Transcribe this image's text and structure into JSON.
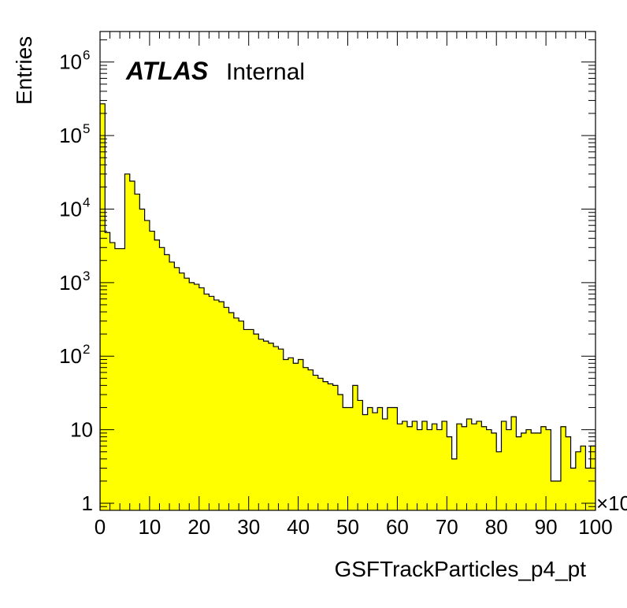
{
  "chart_data": {
    "type": "bar",
    "subtype": "histogram",
    "xlabel": "GSFTrackParticles_p4_pt",
    "ylabel": "Entries",
    "x_multiplier": "×10",
    "xlim": [
      0,
      100
    ],
    "ylim": [
      0.8,
      2600000
    ],
    "log_y": true,
    "fill_color": "#ffff00",
    "line_color": "#000000",
    "label_main": "ATLAS",
    "label_sub": "Internal",
    "x_ticks": [
      0,
      10,
      20,
      30,
      40,
      50,
      60,
      70,
      80,
      90,
      100
    ],
    "x_tick_labels": [
      "0",
      "10",
      "20",
      "30",
      "40",
      "50",
      "60",
      "70",
      "80",
      "90",
      "100"
    ],
    "y_ticks": [
      {
        "value": 1,
        "base": "1",
        "exp": ""
      },
      {
        "value": 10,
        "base": "10",
        "exp": ""
      },
      {
        "value": 100,
        "base": "10",
        "exp": "2"
      },
      {
        "value": 1000,
        "base": "10",
        "exp": "3"
      },
      {
        "value": 10000,
        "base": "10",
        "exp": "4"
      },
      {
        "value": 100000,
        "base": "10",
        "exp": "5"
      },
      {
        "value": 1000000,
        "base": "10",
        "exp": "6"
      }
    ],
    "bin_width": 1,
    "values": [
      270000,
      4800,
      3500,
      2900,
      2900,
      30000,
      24000,
      16000,
      10000,
      7000,
      5000,
      3800,
      3000,
      2400,
      1900,
      1600,
      1350,
      1150,
      1000,
      950,
      850,
      700,
      650,
      580,
      550,
      460,
      390,
      330,
      300,
      230,
      230,
      200,
      170,
      160,
      150,
      135,
      125,
      90,
      95,
      80,
      90,
      70,
      65,
      55,
      50,
      45,
      42,
      40,
      30,
      20,
      20,
      40,
      25,
      16,
      20,
      17,
      20,
      14,
      20,
      20,
      12,
      13,
      11,
      13,
      10,
      13,
      10,
      12,
      10,
      13,
      8,
      4,
      12,
      11,
      14,
      12,
      13,
      11,
      10,
      9,
      5,
      13,
      10,
      15,
      8,
      9,
      10,
      9,
      9,
      11,
      10,
      2,
      2,
      11,
      8,
      3,
      5,
      6,
      3,
      6
    ]
  }
}
